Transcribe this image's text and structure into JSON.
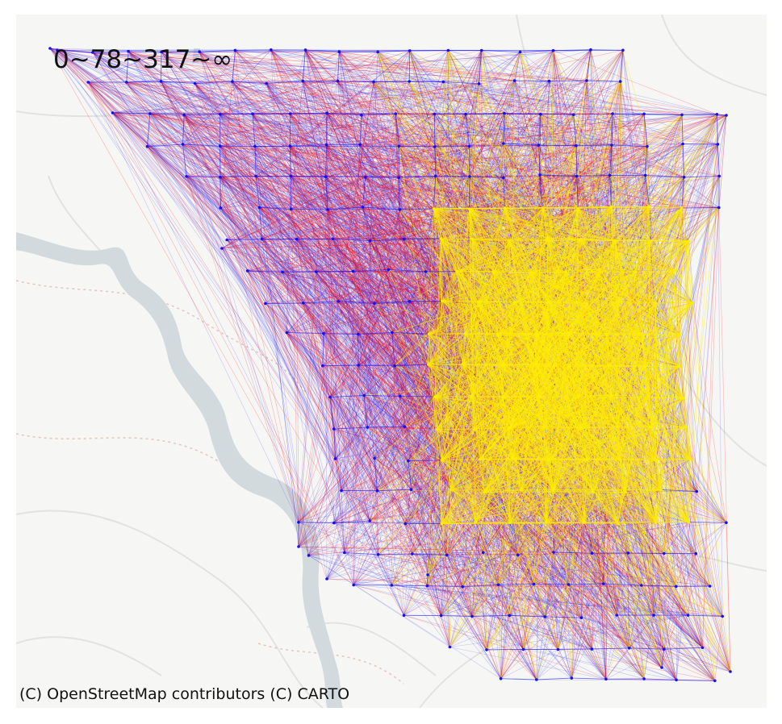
{
  "legend": {
    "text": "0~78~317~∞"
  },
  "attribution": {
    "text": "(C) OpenStreetMap contributors (C) CARTO"
  },
  "colors": {
    "background": "#f6f6f4",
    "river": "#d3dadd",
    "road": "#e4e4e2",
    "boundary": "#e7c6bd",
    "low_flow": "#1010ff",
    "mid_flow": "#ff0000",
    "high_flow": "#ffee00"
  },
  "flow_classes": [
    {
      "label": "0~78",
      "color": "#1010ff"
    },
    {
      "label": "78~317",
      "color": "#ff0000"
    },
    {
      "label": "317~∞",
      "color": "#ffee00"
    }
  ]
}
